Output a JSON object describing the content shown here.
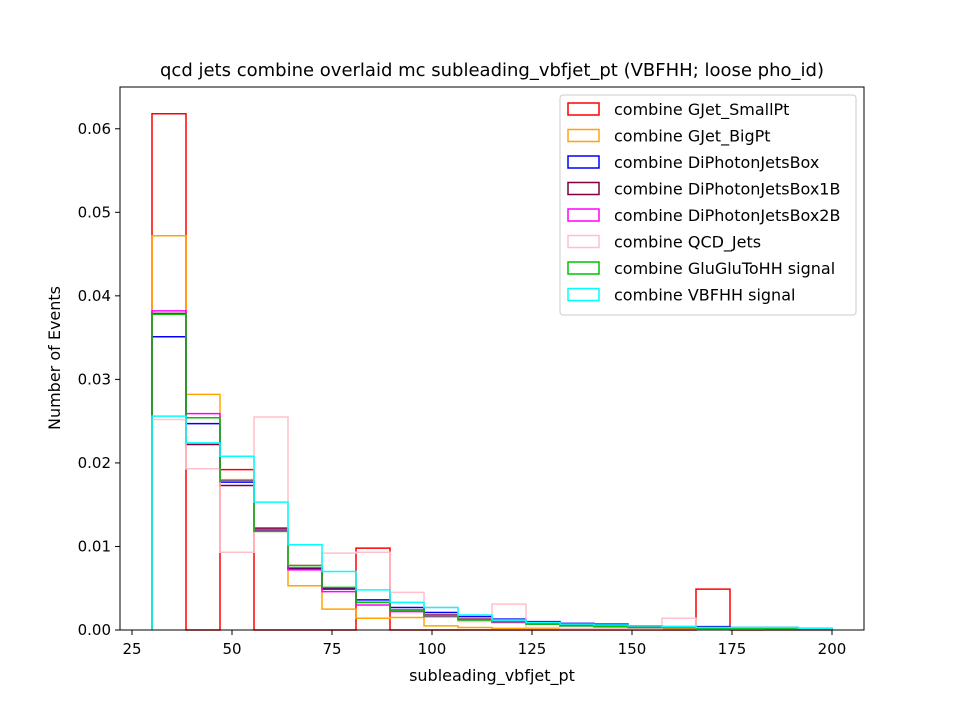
{
  "chart_data": {
    "type": "histogram-step",
    "title": "qcd jets combine overlaid mc subleading_vbfjet_pt (VBFHH; loose pho_id)",
    "xlabel": "subleading_vbfjet_pt",
    "ylabel": "Number of Events",
    "xlim": [
      22,
      208
    ],
    "ylim": [
      0,
      0.065
    ],
    "xticks": [
      25,
      50,
      75,
      100,
      125,
      150,
      175,
      200
    ],
    "xtick_labels": [
      "25",
      "50",
      "75",
      "100",
      "125",
      "150",
      "175",
      "200"
    ],
    "yticks": [
      0,
      0.01,
      0.02,
      0.03,
      0.04,
      0.05,
      0.06
    ],
    "ytick_labels": [
      "0.00",
      "0.01",
      "0.02",
      "0.03",
      "0.04",
      "0.05",
      "0.06"
    ],
    "bin_edges": [
      30,
      38.5,
      47,
      55.5,
      64,
      72.5,
      81,
      89.5,
      98,
      106.5,
      115,
      123.5,
      132,
      140.5,
      149,
      157.5,
      166,
      174.5,
      183,
      191.5,
      200
    ],
    "legend_position": "top-right",
    "series": [
      {
        "name": "combine GJet_SmallPt",
        "color": "#ff0000",
        "values": [
          0.0618,
          0,
          0.0192,
          0,
          0,
          0,
          0.0098,
          0,
          0,
          0,
          0,
          0,
          0,
          0,
          0,
          0,
          0.0049,
          0,
          0,
          0
        ]
      },
      {
        "name": "combine GJet_BigPt",
        "color": "#ffa500",
        "values": [
          0.0472,
          0.0282,
          0.018,
          0.0118,
          0.0053,
          0.0025,
          0.0014,
          0.0015,
          0.0005,
          0.0003,
          0.0002,
          0.0002,
          0.0001,
          0.0001,
          0.0001,
          0.0001,
          0.0001,
          0.0001,
          0.0001,
          0.0001
        ]
      },
      {
        "name": "combine DiPhotonJetsBox",
        "color": "#0000ff",
        "values": [
          0.0351,
          0.0247,
          0.0177,
          0.0119,
          0.0074,
          0.005,
          0.0036,
          0.0027,
          0.0021,
          0.0016,
          0.0013,
          0.001,
          0.0008,
          0.0007,
          0.0005,
          0.0004,
          0.0004,
          0.0003,
          0.0003,
          0.0002
        ]
      },
      {
        "name": "combine DiPhotonJetsBox1B",
        "color": "#800040",
        "values": [
          0.0379,
          0.0222,
          0.0173,
          0.0122,
          0.0073,
          0.0049,
          0.0033,
          0.0024,
          0.0018,
          0.0013,
          0.001,
          0.0008,
          0.0006,
          0.0005,
          0.0004,
          0.0003,
          0.0003,
          0.0002,
          0.0002,
          0.0001
        ]
      },
      {
        "name": "combine DiPhotonJetsBox2B",
        "color": "#ff00ff",
        "values": [
          0.0382,
          0.0259,
          0.0179,
          0.012,
          0.0072,
          0.0046,
          0.003,
          0.0022,
          0.0016,
          0.0012,
          0.0009,
          0.0007,
          0.0005,
          0.0004,
          0.0003,
          0.0003,
          0.0002,
          0.0002,
          0.0002,
          0.0001
        ]
      },
      {
        "name": "combine QCD_Jets",
        "color": "#ffc0cb",
        "values": [
          0.0252,
          0.0193,
          0.0093,
          0.0255,
          0.0078,
          0.0092,
          0.0093,
          0.0045,
          0.0027,
          0.001,
          0.0031,
          0.0003,
          0.0002,
          0.0002,
          0.0001,
          0.0014,
          0.0001,
          0.0001,
          0.0,
          0.0
        ]
      },
      {
        "name": "combine GluGluToHH signal",
        "color": "#00c000",
        "values": [
          0.0378,
          0.0254,
          0.0178,
          0.0118,
          0.0077,
          0.0051,
          0.0033,
          0.0024,
          0.0017,
          0.0012,
          0.001,
          0.0007,
          0.0005,
          0.0004,
          0.0003,
          0.0003,
          0.0002,
          0.0002,
          0.0002,
          0.0001
        ]
      },
      {
        "name": "combine VBFHH signal",
        "color": "#00ffff",
        "values": [
          0.0256,
          0.0224,
          0.0208,
          0.0153,
          0.0102,
          0.007,
          0.0048,
          0.0033,
          0.0027,
          0.0018,
          0.0012,
          0.0009,
          0.0007,
          0.0006,
          0.0005,
          0.0004,
          0.0003,
          0.0003,
          0.0003,
          0.0002
        ]
      }
    ]
  }
}
